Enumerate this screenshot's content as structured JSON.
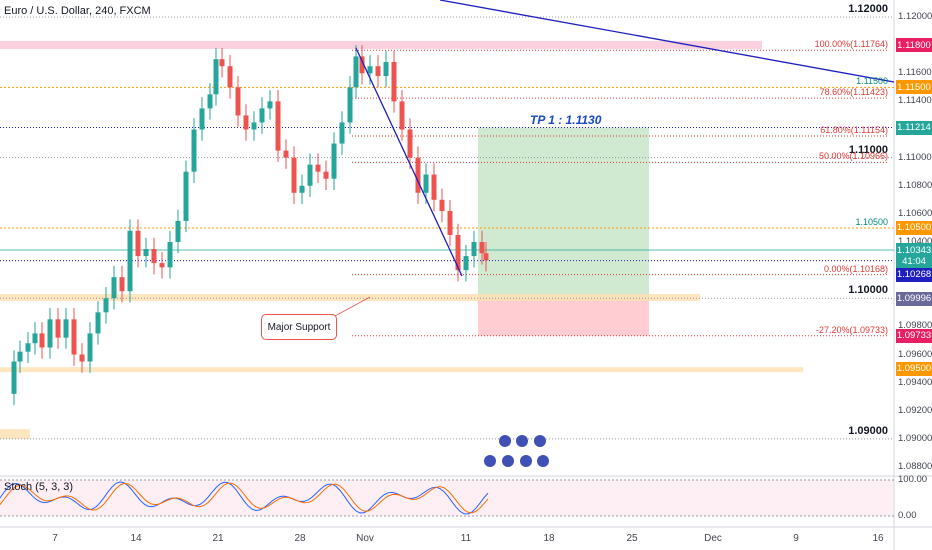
{
  "header": {
    "symbol": "Euro / U.S. Dollar, 240, FXCM",
    "indicator": "Stoch (5, 3, 3)"
  },
  "colors": {
    "up": "#26a69a",
    "down": "#ef5350",
    "blue_line": "#1f1fbf",
    "orange": "#ff9800",
    "tp_zone": "#c8e6c9",
    "sl_zone": "#ffcdd2"
  },
  "chart_data": {
    "type": "candlestick",
    "title": "Euro / U.S. Dollar, 240, FXCM",
    "ylabel": "",
    "ylim": [
      1.087,
      1.1215
    ],
    "xlabel": "",
    "x_ticks": [
      "7",
      "14",
      "21",
      "28",
      "Nov",
      "11",
      "18",
      "25",
      "Dec",
      "9",
      "16"
    ],
    "y_ticks": [
      "1.12000",
      "1.11800",
      "1.11600",
      "1.11400",
      "1.11200",
      "1.11000",
      "1.10800",
      "1.10600",
      "1.10400",
      "1.10200",
      "1.10000",
      "1.09800",
      "1.09600",
      "1.09400",
      "1.09200",
      "1.09000",
      "1.08800"
    ],
    "levels": [
      {
        "label": "1.12000",
        "value": 1.12,
        "style": "grey"
      },
      {
        "label": "1.11500",
        "value": 1.115,
        "style": "orange"
      },
      {
        "label": "1.11000",
        "value": 1.11,
        "style": "grey"
      },
      {
        "label": "1.10500",
        "value": 1.105,
        "style": "orange"
      },
      {
        "label": "1.10000",
        "value": 1.1,
        "style": "grey"
      },
      {
        "label": "1.09000",
        "value": 1.09,
        "style": "grey"
      }
    ],
    "fib_levels": [
      {
        "label": "100.00%(1.11764)",
        "value": 1.11764
      },
      {
        "label": "78.60%(1.11423)",
        "value": 1.11423
      },
      {
        "label": "61.80%(1.11154)",
        "value": 1.11154
      },
      {
        "label": "50.00%(1.10966)",
        "value": 1.10966
      },
      {
        "label": "0.00%(1.10168)",
        "value": 1.10168
      },
      {
        "label": "-27.20%(1.09733)",
        "value": 1.09733
      }
    ],
    "price_tags": [
      {
        "label": "1.11800",
        "value": 1.118,
        "color": "#e91e63"
      },
      {
        "label": "1.11500",
        "value": 1.115,
        "color": "#ff9800"
      },
      {
        "label": "1.11214",
        "value": 1.11214,
        "color": "#26a69a"
      },
      {
        "label": "1.10500",
        "value": 1.105,
        "color": "#ff9800"
      },
      {
        "label": "1.10343",
        "value": 1.10343,
        "color": "#26a69a"
      },
      {
        "label": "41:04",
        "value": 1.1026,
        "color": "#26a69a",
        "offset": 14
      },
      {
        "label": "1.10268",
        "value": 1.10268,
        "color": "#1f1fbf",
        "offset": 28
      },
      {
        "label": "1.09996",
        "value": 1.09996,
        "color": "#6a6a9a"
      },
      {
        "label": "1.09733",
        "value": 1.09733,
        "color": "#e91e63"
      },
      {
        "label": "1.09500",
        "value": 1.095,
        "color": "#ff9800"
      }
    ],
    "stoch_ticks": [
      "100.00",
      "0.00"
    ],
    "annotations": {
      "tp": "TP 1 : 1.1130",
      "support": "Major Support"
    }
  }
}
